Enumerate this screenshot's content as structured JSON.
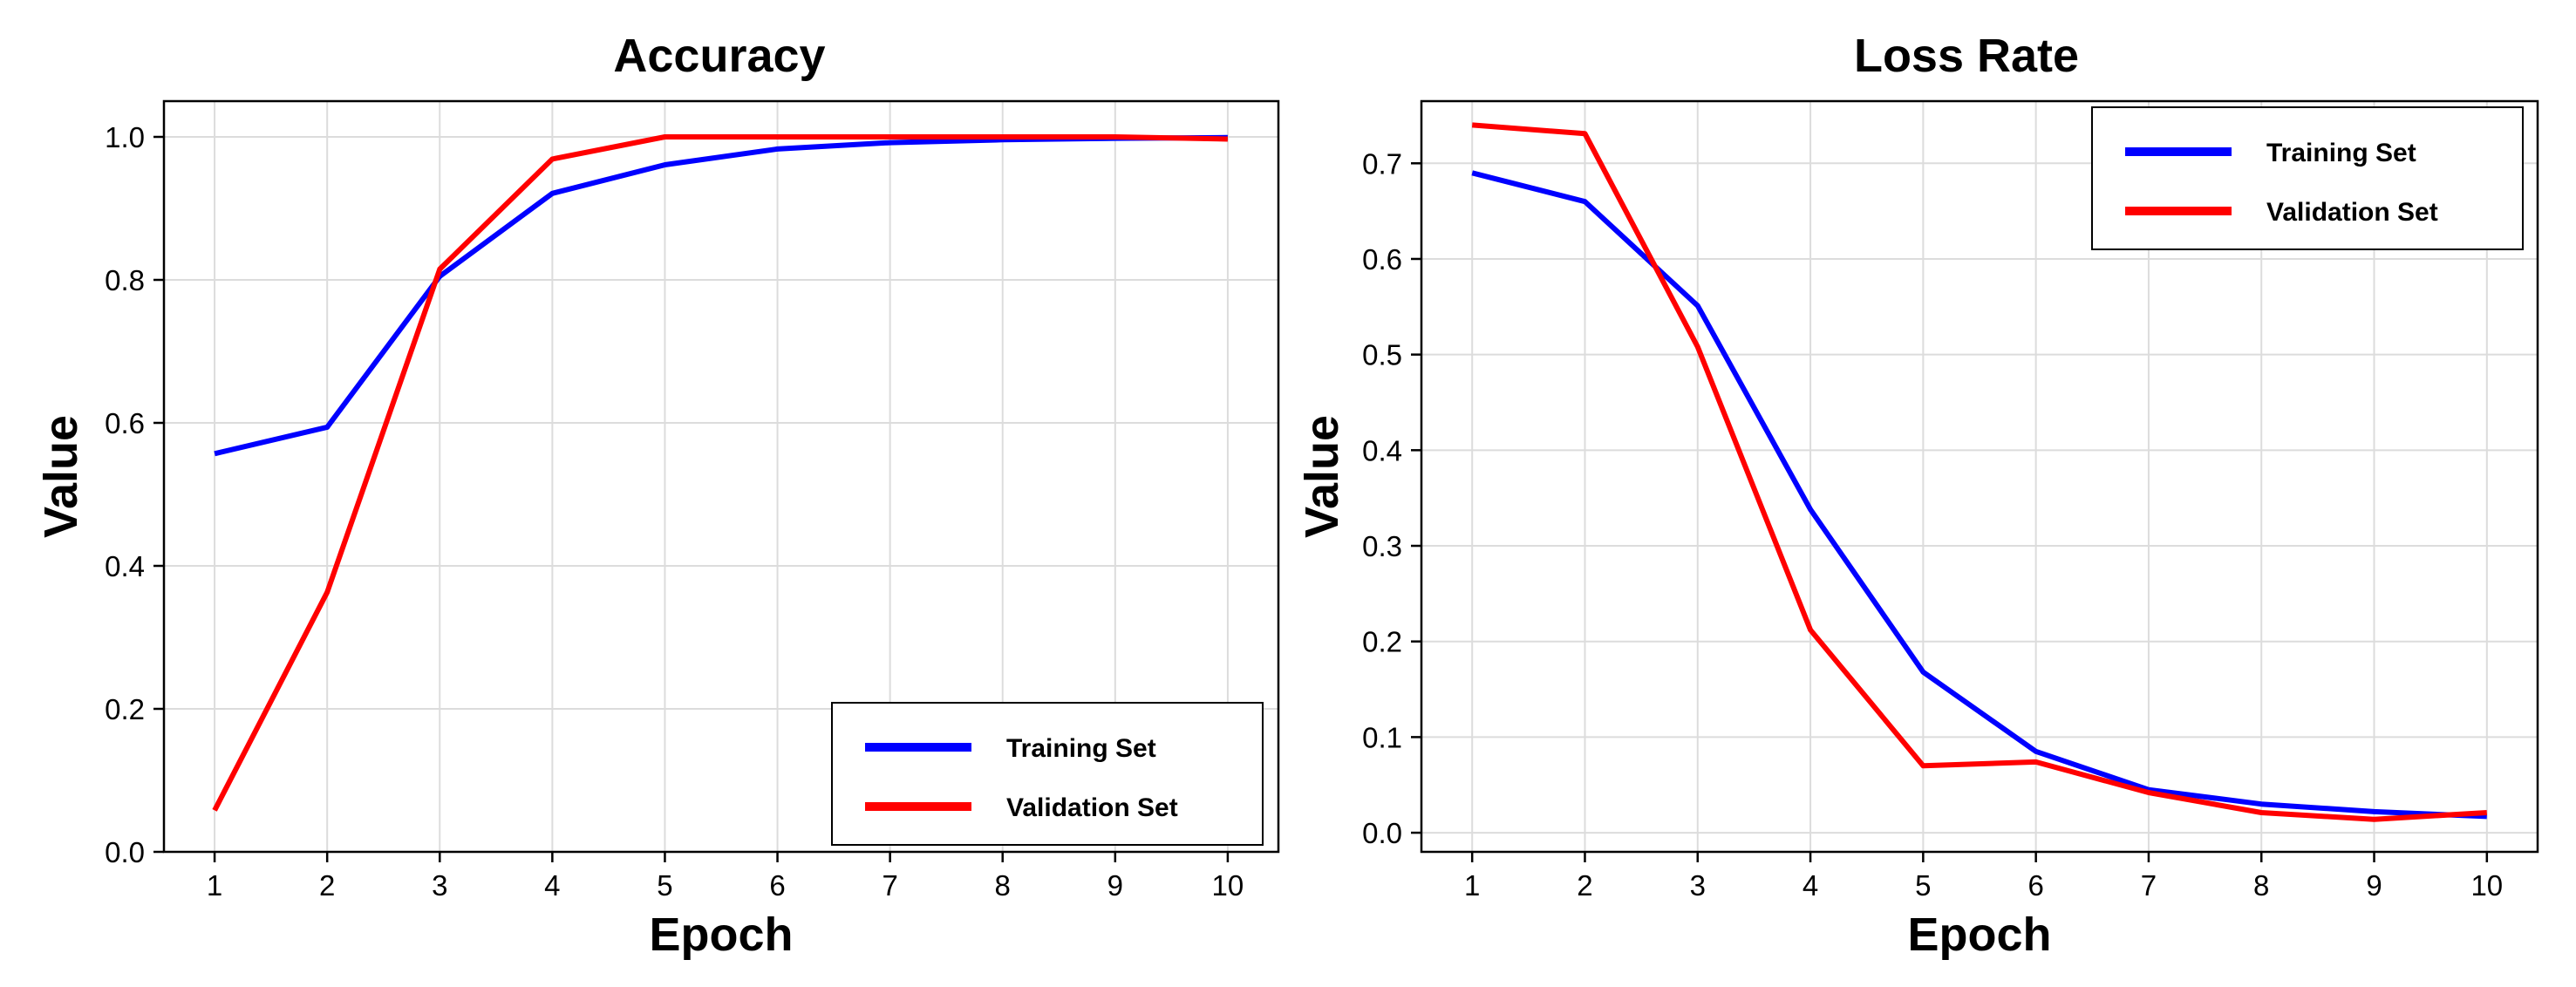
{
  "chart_data": [
    {
      "type": "line",
      "title": "Accuracy",
      "xlabel": "Epoch",
      "ylabel": "Value",
      "x": [
        1,
        2,
        3,
        4,
        5,
        6,
        7,
        8,
        9,
        10
      ],
      "xticks": [
        "1",
        "2",
        "3",
        "4",
        "5",
        "6",
        "7",
        "8",
        "9",
        "10"
      ],
      "xlim": [
        0.55,
        10.45
      ],
      "ylim": [
        0.0,
        1.05
      ],
      "yticks": [
        "0.0",
        "0.2",
        "0.4",
        "0.6",
        "0.8",
        "1.0"
      ],
      "grid": true,
      "legend_position": "lower-right",
      "series": [
        {
          "name": "Training Set",
          "color": "#0000ff",
          "values": [
            0.557,
            0.594,
            0.805,
            0.921,
            0.961,
            0.983,
            0.992,
            0.996,
            0.998,
            0.999
          ]
        },
        {
          "name": "Validation Set",
          "color": "#ff0000",
          "values": [
            0.058,
            0.363,
            0.815,
            0.969,
            1.0,
            1.0,
            1.0,
            1.0,
            1.0,
            0.997
          ]
        }
      ]
    },
    {
      "type": "line",
      "title": "Loss Rate",
      "xlabel": "Epoch",
      "ylabel": "Value",
      "x": [
        1,
        2,
        3,
        4,
        5,
        6,
        7,
        8,
        9,
        10
      ],
      "xticks": [
        "1",
        "2",
        "3",
        "4",
        "5",
        "6",
        "7",
        "8",
        "9",
        "10"
      ],
      "xlim": [
        0.55,
        10.45
      ],
      "ylim": [
        -0.02,
        0.765
      ],
      "yticks": [
        "0.0",
        "0.1",
        "0.2",
        "0.3",
        "0.4",
        "0.5",
        "0.6",
        "0.7"
      ],
      "grid": true,
      "legend_position": "upper-right",
      "series": [
        {
          "name": "Training Set",
          "color": "#0000ff",
          "values": [
            0.69,
            0.66,
            0.551,
            0.338,
            0.168,
            0.085,
            0.045,
            0.03,
            0.022,
            0.017
          ]
        },
        {
          "name": "Validation Set",
          "color": "#ff0000",
          "values": [
            0.74,
            0.731,
            0.508,
            0.212,
            0.07,
            0.074,
            0.042,
            0.021,
            0.014,
            0.021
          ]
        }
      ]
    }
  ]
}
